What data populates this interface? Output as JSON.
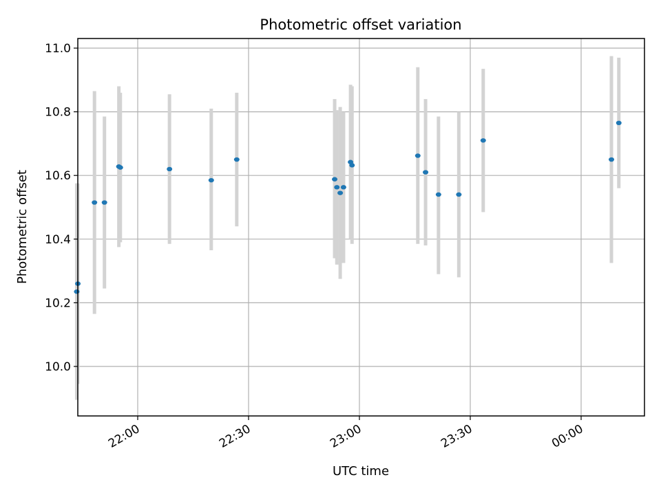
{
  "chart_data": {
    "type": "scatter",
    "title": "Photometric offset variation",
    "xlabel": "UTC time",
    "ylabel": "Photometric offset",
    "grid": true,
    "colors": {
      "point": "#1f77b4",
      "errorbar": "#d3d3d3",
      "grid": "#b0b0b0"
    },
    "x_unit": "UTC time (minutes after 21:30)",
    "xlim": [
      0,
      150
    ],
    "ylim": [
      9.845,
      11.03
    ],
    "xticks": [
      {
        "value": 10,
        "label": "22:00"
      },
      {
        "value": 40,
        "label": "22:30"
      },
      {
        "value": 70,
        "label": "23:00"
      },
      {
        "value": 100,
        "label": "23:30"
      },
      {
        "value": 130,
        "label": "00:00"
      }
    ],
    "yticks": [
      {
        "value": 10.0,
        "label": "10.0"
      },
      {
        "value": 10.2,
        "label": "10.2"
      },
      {
        "value": 10.4,
        "label": "10.4"
      },
      {
        "value": 10.6,
        "label": "10.6"
      },
      {
        "value": 10.8,
        "label": "10.8"
      },
      {
        "value": 11.0,
        "label": "11.0"
      }
    ],
    "points": [
      {
        "x": -6.5,
        "y": 10.235,
        "ylow": 9.895,
        "yhigh": 10.575
      },
      {
        "x": -6.2,
        "y": 10.26,
        "ylow": 9.945,
        "yhigh": 10.575
      },
      {
        "x": -1.7,
        "y": 10.515,
        "ylow": 10.165,
        "yhigh": 10.865
      },
      {
        "x": 1.0,
        "y": 10.515,
        "ylow": 10.245,
        "yhigh": 10.785
      },
      {
        "x": 4.9,
        "y": 10.628,
        "ylow": 10.375,
        "yhigh": 10.88
      },
      {
        "x": 5.3,
        "y": 10.625,
        "ylow": 10.39,
        "yhigh": 10.86
      },
      {
        "x": 18.6,
        "y": 10.62,
        "ylow": 10.385,
        "yhigh": 10.855
      },
      {
        "x": 29.9,
        "y": 10.585,
        "ylow": 10.365,
        "yhigh": 10.81
      },
      {
        "x": 36.8,
        "y": 10.65,
        "ylow": 10.44,
        "yhigh": 10.86
      },
      {
        "x": 63.3,
        "y": 10.588,
        "ylow": 10.34,
        "yhigh": 10.84
      },
      {
        "x": 63.9,
        "y": 10.563,
        "ylow": 10.32,
        "yhigh": 10.805
      },
      {
        "x": 64.8,
        "y": 10.545,
        "ylow": 10.275,
        "yhigh": 10.815
      },
      {
        "x": 65.7,
        "y": 10.563,
        "ylow": 10.325,
        "yhigh": 10.8
      },
      {
        "x": 67.6,
        "y": 10.642,
        "ylow": 10.4,
        "yhigh": 10.885
      },
      {
        "x": 68.0,
        "y": 10.632,
        "ylow": 10.385,
        "yhigh": 10.88
      },
      {
        "x": 85.8,
        "y": 10.662,
        "ylow": 10.385,
        "yhigh": 10.94
      },
      {
        "x": 87.9,
        "y": 10.61,
        "ylow": 10.38,
        "yhigh": 10.84
      },
      {
        "x": 91.4,
        "y": 10.54,
        "ylow": 10.29,
        "yhigh": 10.785
      },
      {
        "x": 96.9,
        "y": 10.54,
        "ylow": 10.28,
        "yhigh": 10.8
      },
      {
        "x": 103.5,
        "y": 10.71,
        "ylow": 10.485,
        "yhigh": 10.935
      },
      {
        "x": 138.2,
        "y": 10.65,
        "ylow": 10.325,
        "yhigh": 10.975
      },
      {
        "x": 140.2,
        "y": 10.765,
        "ylow": 10.56,
        "yhigh": 10.97
      }
    ]
  }
}
